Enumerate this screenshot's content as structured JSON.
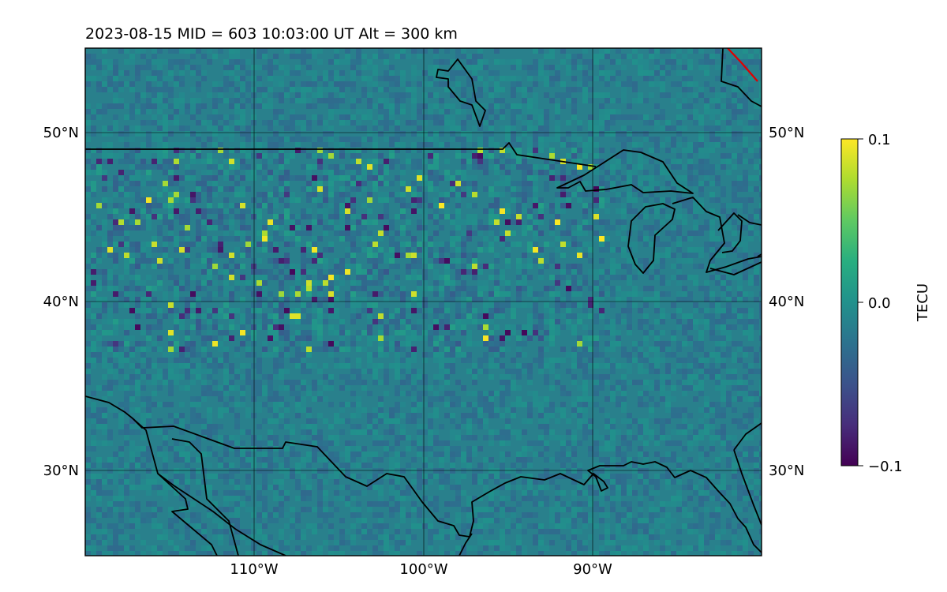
{
  "map": {
    "title": "2023-08-15  MID = 603    10:03:00  UT  Alt = 300 km",
    "lon_range": [
      -120,
      -80
    ],
    "lat_range": [
      25,
      55
    ],
    "lat_ticks": [
      {
        "value": 30,
        "label": "30°N"
      },
      {
        "value": 40,
        "label": "40°N"
      },
      {
        "value": 50,
        "label": "50°N"
      }
    ],
    "lon_ticks": [
      {
        "value": -110,
        "label": "110°W"
      },
      {
        "value": -100,
        "label": "100°W"
      },
      {
        "value": -90,
        "label": "90°W"
      }
    ],
    "gridlines": true,
    "colormap": "viridis",
    "colors": {
      "coastline": "#000000",
      "highlight_line": "#e00000",
      "low": "#440154",
      "mid": "#21918c",
      "high": "#fde725"
    }
  },
  "colorbar": {
    "label": "TECU",
    "min": -0.1,
    "max": 0.1,
    "ticks": [
      {
        "value": 0.1,
        "label": "0.1"
      },
      {
        "value": 0.0,
        "label": "0.0"
      },
      {
        "value": -0.1,
        "label": "−0.1"
      }
    ]
  }
}
